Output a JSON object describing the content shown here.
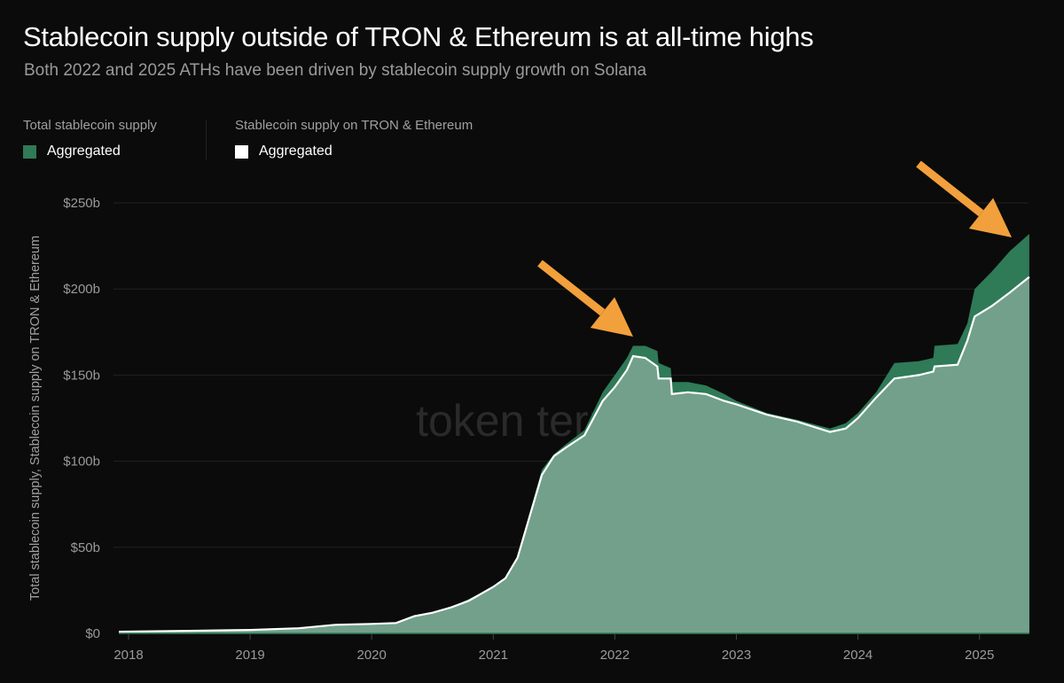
{
  "title": "Stablecoin supply outside of TRON & Ethereum is at all-time highs",
  "subtitle": "Both 2022 and 2025 ATHs have been driven by stablecoin supply growth on Solana",
  "legend": [
    {
      "group": "Total stablecoin supply",
      "label": "Aggregated",
      "color": "#2f7a57"
    },
    {
      "group": "Stablecoin supply on TRON & Ethereum",
      "label": "Aggregated",
      "color": "#ffffff"
    }
  ],
  "watermark": "token terminal_",
  "chart_data": {
    "type": "area",
    "ylabel": "Total stablecoin supply, Stablecoin supply on TRON & Ethereum",
    "ylim": [
      0,
      250
    ],
    "yticks": [
      "$0",
      "$50b",
      "$100b",
      "$150b",
      "$200b",
      "$250b"
    ],
    "ytick_values": [
      0,
      50,
      100,
      150,
      200,
      250
    ],
    "xticks": [
      "2018",
      "2019",
      "2020",
      "2021",
      "2022",
      "2023",
      "2024",
      "2025"
    ],
    "xlim": [
      2017.92,
      2025.41
    ],
    "grid": true,
    "legend_position": "top-left",
    "fill_color": "#72a08b",
    "x": [
      2017.92,
      2018.5,
      2019.0,
      2019.4,
      2019.7,
      2020.0,
      2020.2,
      2020.35,
      2020.5,
      2020.65,
      2020.8,
      2021.0,
      2021.1,
      2021.2,
      2021.3,
      2021.4,
      2021.5,
      2021.6,
      2021.75,
      2021.9,
      2022.0,
      2022.1,
      2022.15,
      2022.25,
      2022.35,
      2022.36,
      2022.46,
      2022.47,
      2022.6,
      2022.75,
      2022.9,
      2023.0,
      2023.25,
      2023.5,
      2023.77,
      2023.9,
      2024.0,
      2024.15,
      2024.3,
      2024.5,
      2024.62,
      2024.63,
      2024.82,
      2024.9,
      2024.96,
      2025.1,
      2025.25,
      2025.41
    ],
    "series": [
      {
        "name": "Total stablecoin supply",
        "color": "#2f7a57",
        "values": [
          1,
          1.5,
          2,
          3,
          5,
          5.5,
          6,
          10,
          12,
          15,
          20,
          27,
          32,
          45,
          70,
          95,
          104,
          110,
          118,
          140,
          150,
          160,
          167,
          167,
          164,
          157,
          154,
          146,
          146,
          144,
          139,
          135,
          128,
          124,
          119,
          122,
          128,
          140,
          157,
          158,
          160,
          167,
          168,
          180,
          200,
          210,
          222,
          232
        ]
      },
      {
        "name": "Stablecoin supply on TRON & Ethereum",
        "color": "#ffffff",
        "values": [
          1,
          1.5,
          2,
          3,
          5,
          5.5,
          6,
          10,
          12,
          15,
          19,
          27,
          32,
          44,
          68,
          92,
          103,
          108,
          115,
          135,
          143,
          153,
          161,
          160,
          155,
          148,
          148,
          139,
          140,
          139,
          135,
          133,
          127,
          123,
          117,
          119,
          125,
          137,
          148,
          150,
          152,
          155,
          156,
          170,
          184,
          190,
          198,
          207
        ]
      }
    ],
    "annotation_color": "#f2a03c"
  }
}
